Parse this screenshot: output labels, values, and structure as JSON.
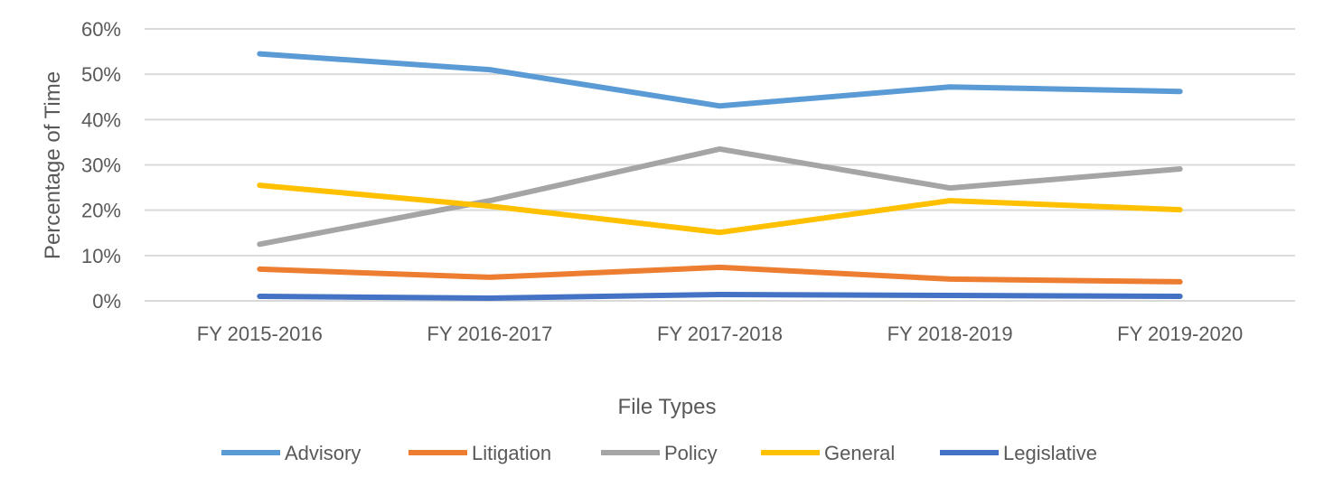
{
  "chart_data": {
    "type": "line",
    "title": "",
    "xlabel": "File Types",
    "ylabel": "Percentage of Time",
    "categories": [
      "FY 2015-2016",
      "FY 2016-2017",
      "FY 2017-2018",
      "FY 2018-2019",
      "FY 2019-2020"
    ],
    "ylim": [
      0,
      60
    ],
    "yticks": [
      "0%",
      "10%",
      "20%",
      "30%",
      "40%",
      "50%",
      "60%"
    ],
    "grid": true,
    "legend_position": "bottom",
    "series": [
      {
        "name": "Advisory",
        "color": "#5B9BD5",
        "values": [
          54.5,
          51.0,
          43.0,
          47.2,
          46.2
        ]
      },
      {
        "name": "Litigation",
        "color": "#ED7D31",
        "values": [
          7.0,
          5.2,
          7.4,
          4.8,
          4.2
        ]
      },
      {
        "name": "Policy",
        "color": "#A5A5A5",
        "values": [
          12.5,
          22.1,
          33.5,
          24.9,
          29.1
        ]
      },
      {
        "name": "General",
        "color": "#FFC000",
        "values": [
          25.5,
          20.9,
          15.1,
          22.1,
          20.1
        ]
      },
      {
        "name": "Legislative",
        "color": "#4472C4",
        "values": [
          1.0,
          0.6,
          1.4,
          1.2,
          1.0
        ]
      }
    ]
  }
}
